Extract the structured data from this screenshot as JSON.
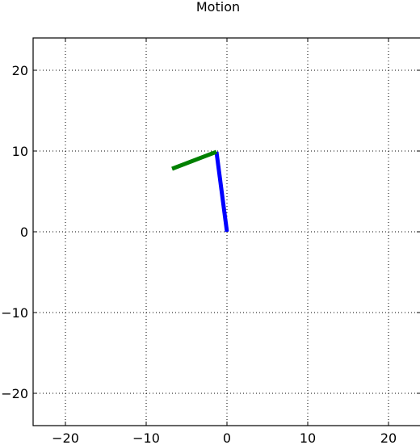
{
  "chart_data": {
    "type": "line",
    "title": "Motion",
    "xlabel": "",
    "ylabel": "",
    "xlim": [
      -24,
      24
    ],
    "ylim": [
      -24,
      24
    ],
    "grid": true,
    "xticks": [
      -20,
      -10,
      0,
      10,
      20
    ],
    "yticks": [
      -20,
      -10,
      0,
      10,
      20
    ],
    "xtick_labels": [
      "−20",
      "−10",
      "0",
      "10",
      "20"
    ],
    "ytick_labels": [
      "−20",
      "−10",
      "0",
      "10",
      "20"
    ],
    "series": [
      {
        "color": "#0000ff",
        "x": [
          0.0,
          -1.3
        ],
        "y": [
          0.0,
          9.9
        ]
      },
      {
        "color": "#008000",
        "x": [
          -1.3,
          -6.8
        ],
        "y": [
          9.9,
          7.8
        ]
      }
    ]
  }
}
